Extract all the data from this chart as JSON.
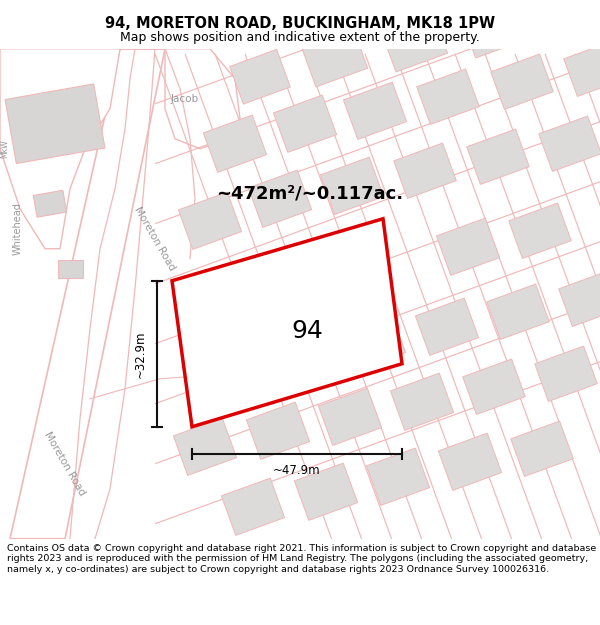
{
  "title_line1": "94, MORETON ROAD, BUCKINGHAM, MK18 1PW",
  "title_line2": "Map shows position and indicative extent of the property.",
  "footer_text": "Contains OS data © Crown copyright and database right 2021. This information is subject to Crown copyright and database rights 2023 and is reproduced with the permission of HM Land Registry. The polygons (including the associated geometry, namely x, y co-ordinates) are subject to Crown copyright and database rights 2023 Ordnance Survey 100026316.",
  "area_label": "~472m²/~0.117ac.",
  "number_label": "94",
  "dim_width": "~47.9m",
  "dim_height": "~32.9m",
  "road_label_moreton_mid": "Moreton Road",
  "road_label_moreton_bot": "Moreton Road",
  "road_label_jacob": "Jacob",
  "road_label_whitehead": "Whitehead",
  "map_bg": "#ffffff",
  "map_bg_tint": "#f5f3f3",
  "road_fill": "#ffffff",
  "road_line_color": "#f0b8b8",
  "block_color": "#dddada",
  "block_outline": "#f0b8b8",
  "red_plot_color": "#dd0000",
  "dim_color": "#111111",
  "road_text_color": "#999999",
  "title_fontsize": 10.5,
  "subtitle_fontsize": 9.0,
  "footer_fontsize": 6.8,
  "label_fontsize": 13.0,
  "number_fontsize": 18.0,
  "dim_fontsize": 8.5
}
